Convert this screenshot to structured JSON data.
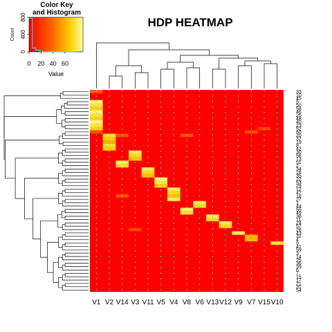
{
  "chart_data": {
    "type": "heatmap",
    "title": "HDP HEATMAP",
    "columns": [
      "V1",
      "V2",
      "V14",
      "V3",
      "V11",
      "V5",
      "V4",
      "V8",
      "V6",
      "V13",
      "V12",
      "V9",
      "V7",
      "V15",
      "V10"
    ],
    "rows": [
      "33",
      "10",
      "45",
      "5",
      "50",
      "58",
      "46",
      "26",
      "48",
      "40",
      "23",
      "52",
      "60",
      "20",
      "37",
      "19",
      "8",
      "42",
      "30",
      "56",
      "13",
      "51",
      "2",
      "34",
      "16",
      "35",
      "22",
      "53",
      "29",
      "12",
      "47",
      "18",
      "27",
      "1",
      "44",
      "55",
      "49",
      "38",
      "11",
      "24",
      "57",
      "28",
      "43",
      "32",
      "4",
      "9",
      "41",
      "59",
      "3",
      "14",
      "25",
      "36",
      "39",
      "6",
      "7",
      "15",
      "17",
      "21",
      "31",
      "54"
    ],
    "row_labels_shown": [
      "33",
      "10",
      "45",
      "5",
      "50",
      "58",
      "46",
      "26",
      "48",
      "40",
      "23",
      "52",
      "60",
      "20",
      "37",
      "19",
      "8",
      "42",
      "30",
      "56",
      "13",
      "51",
      "2",
      "34",
      "16",
      "35",
      "22",
      "53",
      "29",
      "12",
      "47",
      "18",
      "27",
      "1",
      "44",
      "55",
      "49",
      "38",
      "11",
      "24",
      "57",
      "28",
      "43",
      "32",
      "4",
      "9",
      "41",
      "59",
      "3",
      "14",
      "25",
      "36",
      "39",
      "6",
      "7",
      "15",
      "17",
      "21",
      "31",
      "54"
    ],
    "cluster_cells": [
      {
        "rows": [
          3,
          11
        ],
        "col": 0,
        "value": 85
      },
      {
        "rows": [
          0,
          0
        ],
        "col": 0,
        "value": 35
      },
      {
        "rows": [
          12,
          12
        ],
        "col": 0,
        "value": 30
      },
      {
        "rows": [
          13,
          17
        ],
        "col": 1,
        "value": 75
      },
      {
        "rows": [
          18,
          20
        ],
        "col": 3,
        "value": 80
      },
      {
        "rows": [
          21,
          22
        ],
        "col": 2,
        "value": 82
      },
      {
        "rows": [
          23,
          25
        ],
        "col": 4,
        "value": 80
      },
      {
        "rows": [
          26,
          28
        ],
        "col": 5,
        "value": 85
      },
      {
        "rows": [
          29,
          32
        ],
        "col": 6,
        "value": 80
      },
      {
        "rows": [
          33,
          34
        ],
        "col": 8,
        "value": 80
      },
      {
        "rows": [
          35,
          36
        ],
        "col": 7,
        "value": 82
      },
      {
        "rows": [
          37,
          38
        ],
        "col": 9,
        "value": 80
      },
      {
        "rows": [
          39,
          40
        ],
        "col": 10,
        "value": 80
      },
      {
        "rows": [
          42,
          42
        ],
        "col": 11,
        "value": 80
      },
      {
        "rows": [
          43,
          44
        ],
        "col": 12,
        "value": 60
      },
      {
        "rows": [
          45,
          45
        ],
        "col": 14,
        "value": 75
      },
      {
        "rows": [
          11,
          11
        ],
        "col": 13,
        "value": 25
      },
      {
        "rows": [
          12,
          12
        ],
        "col": 12,
        "value": 28
      },
      {
        "rows": [
          13,
          13
        ],
        "col": 2,
        "value": 30
      },
      {
        "rows": [
          13,
          13
        ],
        "col": 7,
        "value": 30
      },
      {
        "rows": [
          31,
          31
        ],
        "col": 2,
        "value": 30
      },
      {
        "rows": [
          41,
          41
        ],
        "col": 3,
        "value": 25
      }
    ],
    "color_key": {
      "title": "Color Key",
      "subtitle": "and Histogram",
      "xlabel": "Value",
      "ylabel": "Count",
      "x_ticks": [
        "0",
        "20",
        "40",
        "60"
      ],
      "y_ticks": [
        "0",
        "400",
        "800"
      ],
      "x_range": [
        0,
        90
      ],
      "y_range": [
        0,
        800
      ],
      "histogram_counts": [
        780,
        90,
        40,
        20,
        10,
        8,
        6,
        5,
        5,
        6,
        5,
        5,
        6,
        8,
        12,
        15
      ]
    },
    "colors": {
      "low": "#ff0000",
      "mid": "#ff8800",
      "high": "#ffffbf",
      "grid_line": "#00ffff",
      "histogram_line": "#00ffff"
    },
    "dendrograms": "row and column hierarchical clustering"
  }
}
